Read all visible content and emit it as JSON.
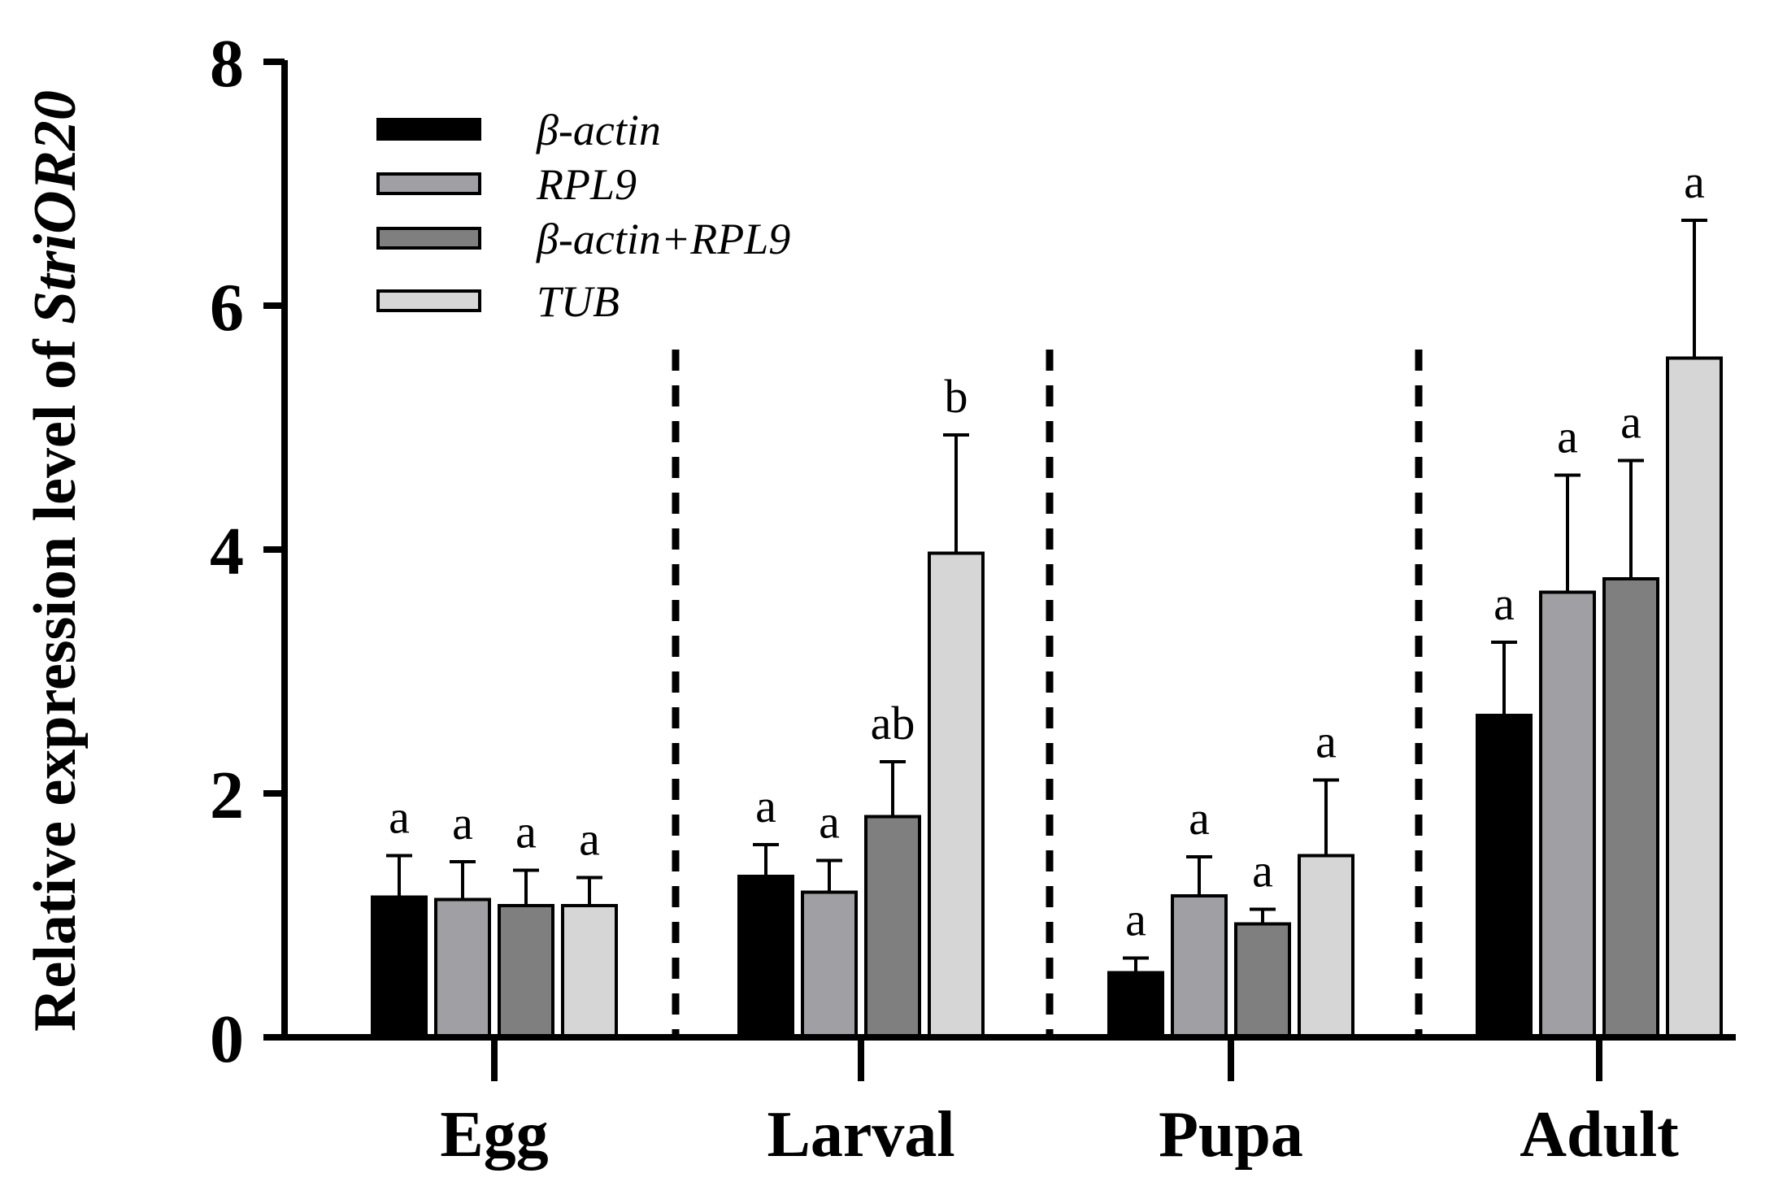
{
  "chart_data": {
    "type": "bar",
    "title": "",
    "xlabel": "",
    "ylabel_prefix": "Relative expression level of ",
    "ylabel_gene": "StriOR20",
    "ylim": [
      0,
      8
    ],
    "yticks": [
      "0",
      "2",
      "4",
      "6",
      "8"
    ],
    "categories": [
      "Egg",
      "Larval",
      "Pupa",
      "Adult"
    ],
    "series": [
      {
        "name": "β-actin",
        "color": "#000000",
        "values": [
          1.15,
          1.32,
          0.53,
          2.64
        ],
        "errors": [
          0.34,
          0.26,
          0.12,
          0.6
        ],
        "sig": [
          "a",
          "a",
          "a",
          "a"
        ]
      },
      {
        "name": "RPL9",
        "color": "#a0a0a4",
        "values": [
          1.13,
          1.19,
          1.16,
          3.65
        ],
        "errors": [
          0.31,
          0.26,
          0.32,
          0.96
        ],
        "sig": [
          "a",
          "a",
          "a",
          "a"
        ]
      },
      {
        "name": "β-actin+RPL9",
        "color": "#7f7f7f",
        "values": [
          1.08,
          1.81,
          0.93,
          3.76
        ],
        "errors": [
          0.29,
          0.45,
          0.12,
          0.97
        ],
        "sig": [
          "a",
          "ab",
          "a",
          "a"
        ]
      },
      {
        "name": "TUB",
        "color": "#d6d6d6",
        "values": [
          1.08,
          3.97,
          1.49,
          5.57
        ],
        "errors": [
          0.23,
          0.97,
          0.62,
          1.13
        ],
        "sig": [
          "a",
          "b",
          "a",
          "a"
        ]
      }
    ],
    "legend_position": "top-left",
    "separators": "dashed vertical lines between groups"
  }
}
